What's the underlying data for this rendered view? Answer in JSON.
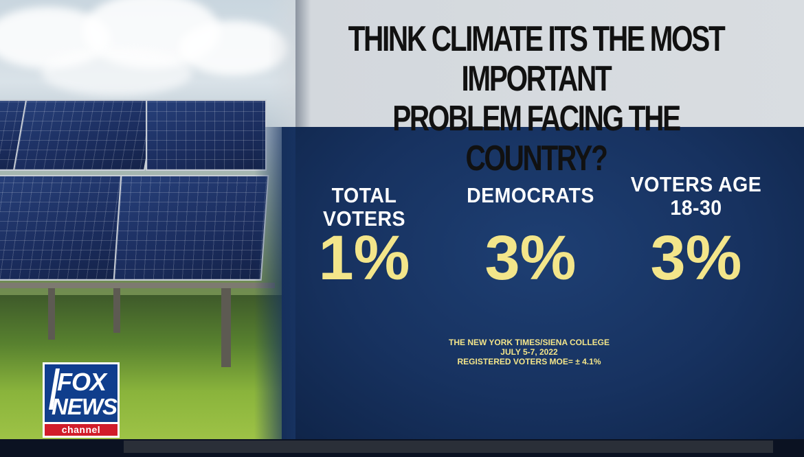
{
  "headline": {
    "line1": "THINK CLIMATE ITS THE MOST IMPORTANT",
    "line2": "PROBLEM FACING THE COUNTRY?"
  },
  "stats": [
    {
      "label_line1": "TOTAL VOTERS",
      "label_line2": "",
      "value": "1%"
    },
    {
      "label_line1": "DEMOCRATS",
      "label_line2": "",
      "value": "3%"
    },
    {
      "label_line1": "VOTERS AGE",
      "label_line2": "18-30",
      "value": "3%"
    }
  ],
  "source": {
    "line1": "THE NEW YORK TIMES/SIENA COLLEGE",
    "line2": "JULY 5-7, 2022",
    "line3": "REGISTERED VOTERS MOE= ± 4.1%"
  },
  "logo": {
    "line1": "FOX",
    "line2": "NEWS",
    "line3": "channel"
  },
  "colors": {
    "panel_blue": "#173260",
    "value_yellow": "#f3e58a",
    "title_band": "#d9dde1",
    "logo_blue": "#0f3d8f",
    "logo_red": "#d11d2a"
  },
  "background_image": "solar-panels-in-field"
}
